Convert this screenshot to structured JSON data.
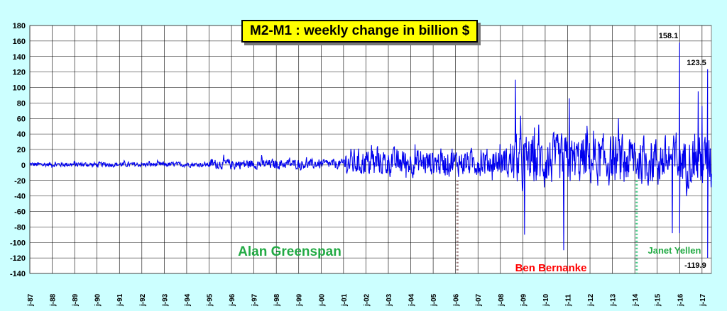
{
  "chart_data": {
    "type": "line",
    "title": "M2-M1  : weekly change in billion $",
    "xlabel": "",
    "ylabel": "",
    "ylim": [
      -140,
      180
    ],
    "y_ticks": [
      180,
      160,
      140,
      120,
      100,
      80,
      60,
      40,
      20,
      0,
      -20,
      -40,
      -60,
      -80,
      -100,
      -120,
      -140
    ],
    "x_range": [
      "1987-01",
      "2017-06"
    ],
    "x_tick_labels": [
      "j-87",
      "j-88",
      "j-89",
      "j-90",
      "j-91",
      "j-92",
      "j-93",
      "j-94",
      "j-95",
      "j-96",
      "j-97",
      "j-98",
      "j-99",
      "j-00",
      "j-01",
      "j-02",
      "j-03",
      "j-04",
      "j-05",
      "j-06",
      "j-07",
      "j-08",
      "j-09",
      "j-10",
      "j-11",
      "j-12",
      "j-13",
      "j-14",
      "j-15",
      "j-16",
      "j-17"
    ],
    "grid": true,
    "legend": "none",
    "series": [
      {
        "color": "#0000ee",
        "note_points": [],
        "eras": [
          {
            "from": "1987-01",
            "to": "1995-01",
            "amplitude": 4
          },
          {
            "from": "1995-01",
            "to": "2001-01",
            "amplitude": 8
          },
          {
            "from": "2001-01",
            "to": "2008-06",
            "amplitude": 22
          },
          {
            "from": "2008-06",
            "to": "2017-06",
            "amplitude": 40
          }
        ]
      }
    ],
    "spikes": [
      {
        "date": "2008-09",
        "value": 110
      },
      {
        "date": "2009-02",
        "value": -90
      },
      {
        "date": "2010-11",
        "value": -110
      },
      {
        "date": "2011-02",
        "value": 86
      },
      {
        "date": "2015-09",
        "value": -88
      },
      {
        "date": "2016-01",
        "value": 158.1
      },
      {
        "date": "2016-01",
        "value": -88
      },
      {
        "date": "2016-11",
        "value": 95
      },
      {
        "date": "2017-01",
        "value": 76
      },
      {
        "date": "2017-04",
        "value": 123.5
      },
      {
        "date": "2017-04",
        "value": -119.9
      }
    ],
    "data_labels": [
      {
        "text": "158.1",
        "date": "2016-01",
        "value": 158.1
      },
      {
        "text": "123.5",
        "date": "2017-04",
        "value": 123.5
      },
      {
        "text": "-119.9",
        "date": "2017-04",
        "value": -119.9
      }
    ],
    "annotations": [
      {
        "text": "Alan Greenspan",
        "color": "#22aa44"
      },
      {
        "text": "Ben  Bernanke",
        "color": "#ff0000"
      },
      {
        "text": "Janet Yellen",
        "color": "#22aa44"
      }
    ],
    "markers": [
      {
        "date": "2006-02",
        "color": "#a08080"
      },
      {
        "date": "2014-02",
        "color": "#44cc88"
      }
    ]
  }
}
